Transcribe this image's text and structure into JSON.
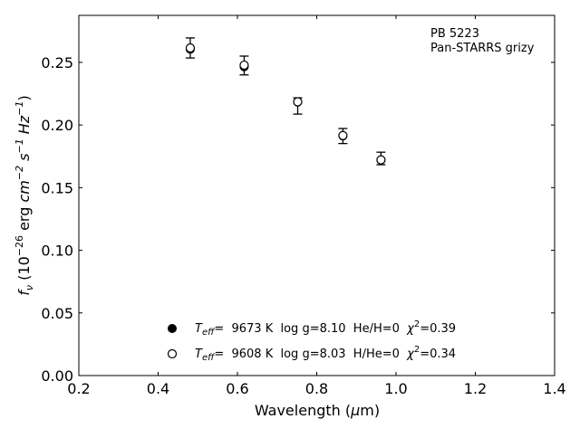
{
  "chart_data": {
    "type": "scatter",
    "title": "",
    "xlabel": {
      "pre": "Wavelength (",
      "mu": "μ",
      "post": "m)"
    },
    "ylabel": {
      "f": "f",
      "nu": "ν",
      "open": " (10",
      "exp1": "−26",
      "erg": " erg ",
      "cm": "cm",
      "exp2": "−2",
      "s": " s",
      "exp3": "−1",
      "hz": " Hz",
      "exp4": "−1",
      "close": ")"
    },
    "xlim": [
      0.2,
      1.4
    ],
    "ylim": [
      0.0,
      0.2875
    ],
    "xticks": [
      0.2,
      0.4,
      0.6,
      0.8,
      1.0,
      1.2,
      1.4
    ],
    "xtick_labels": [
      "0.2",
      "0.4",
      "0.6",
      "0.8",
      "1.0",
      "1.2",
      "1.4"
    ],
    "yticks": [
      0.0,
      0.05,
      0.1,
      0.15,
      0.2,
      0.25
    ],
    "ytick_labels": [
      "0.00",
      "0.05",
      "0.10",
      "0.15",
      "0.20",
      "0.25"
    ],
    "grid": false,
    "annotation": [
      "PB 5223",
      "Pan-STARRS grizy"
    ],
    "series": [
      {
        "name": "observed",
        "marker": "errorbar",
        "points": [
          {
            "x": 0.481,
            "y": 0.2615,
            "err": 0.008
          },
          {
            "x": 0.617,
            "y": 0.2475,
            "err": 0.0075
          },
          {
            "x": 0.752,
            "y": 0.2152,
            "err": 0.0065
          },
          {
            "x": 0.866,
            "y": 0.1912,
            "err": 0.006
          },
          {
            "x": 0.962,
            "y": 0.1733,
            "err": 0.005
          }
        ]
      },
      {
        "name": "model_He",
        "marker": "filled",
        "points": [
          {
            "x": 0.481,
            "y": 0.2605
          },
          {
            "x": 0.617,
            "y": 0.2465
          },
          {
            "x": 0.752,
            "y": 0.2183
          },
          {
            "x": 0.866,
            "y": 0.1913
          },
          {
            "x": 0.962,
            "y": 0.172
          }
        ]
      },
      {
        "name": "model_H",
        "marker": "open",
        "points": [
          {
            "x": 0.481,
            "y": 0.2615
          },
          {
            "x": 0.617,
            "y": 0.2478
          },
          {
            "x": 0.752,
            "y": 0.2185
          },
          {
            "x": 0.866,
            "y": 0.1916
          },
          {
            "x": 0.962,
            "y": 0.1722
          }
        ]
      }
    ],
    "legend": {
      "placement": "lower-center",
      "entries": [
        {
          "marker": "filled",
          "teff_sym": "T",
          "teff_sub": "eff",
          "eq": "=  9673 K  log g=8.10  He/H=0  ",
          "chi": "χ",
          "chi_sup": "2",
          "chi_val": "=0.39"
        },
        {
          "marker": "open",
          "teff_sym": "T",
          "teff_sub": "eff",
          "eq": "=  9608 K  log g=8.03  H/He=0  ",
          "chi": "χ",
          "chi_sup": "2",
          "chi_val": "=0.34"
        }
      ]
    }
  }
}
